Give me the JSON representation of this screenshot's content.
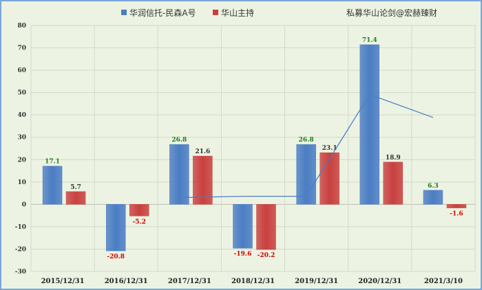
{
  "chart_data": {
    "type": "bar",
    "categories": [
      "2015/12/31",
      "2016/12/31",
      "2017/12/31",
      "2018/12/31",
      "2019/12/31",
      "2020/12/31",
      "2021/3/10"
    ],
    "series": [
      {
        "name": "华润信托-民森A号",
        "values": [
          17.1,
          -20.8,
          26.8,
          -19.6,
          26.8,
          71.4,
          6.3
        ],
        "color": "#4a7dc4"
      },
      {
        "name": "华山主持",
        "values": [
          5.7,
          -5.2,
          21.6,
          -20.2,
          23.1,
          18.9,
          -1.6
        ],
        "color": "#c9403f"
      }
    ],
    "trendline": {
      "series": "华润信托-民森A号",
      "type": "linear",
      "color": "#4a7dc4"
    },
    "data_label_colors": {
      "positive_blue": "#1f7a1f",
      "positive_red": "#333333",
      "negative": "#d00000"
    },
    "ylim": [
      -30,
      80
    ],
    "yticks": [
      -30,
      -20,
      -10,
      0,
      10,
      20,
      30,
      40,
      50,
      60,
      70,
      80
    ],
    "grid": true,
    "legend_position": "top",
    "annotation": "私募华山论剑@宏赫臻财",
    "background": "#edf3e2",
    "border_color": "#7aa6d8"
  }
}
